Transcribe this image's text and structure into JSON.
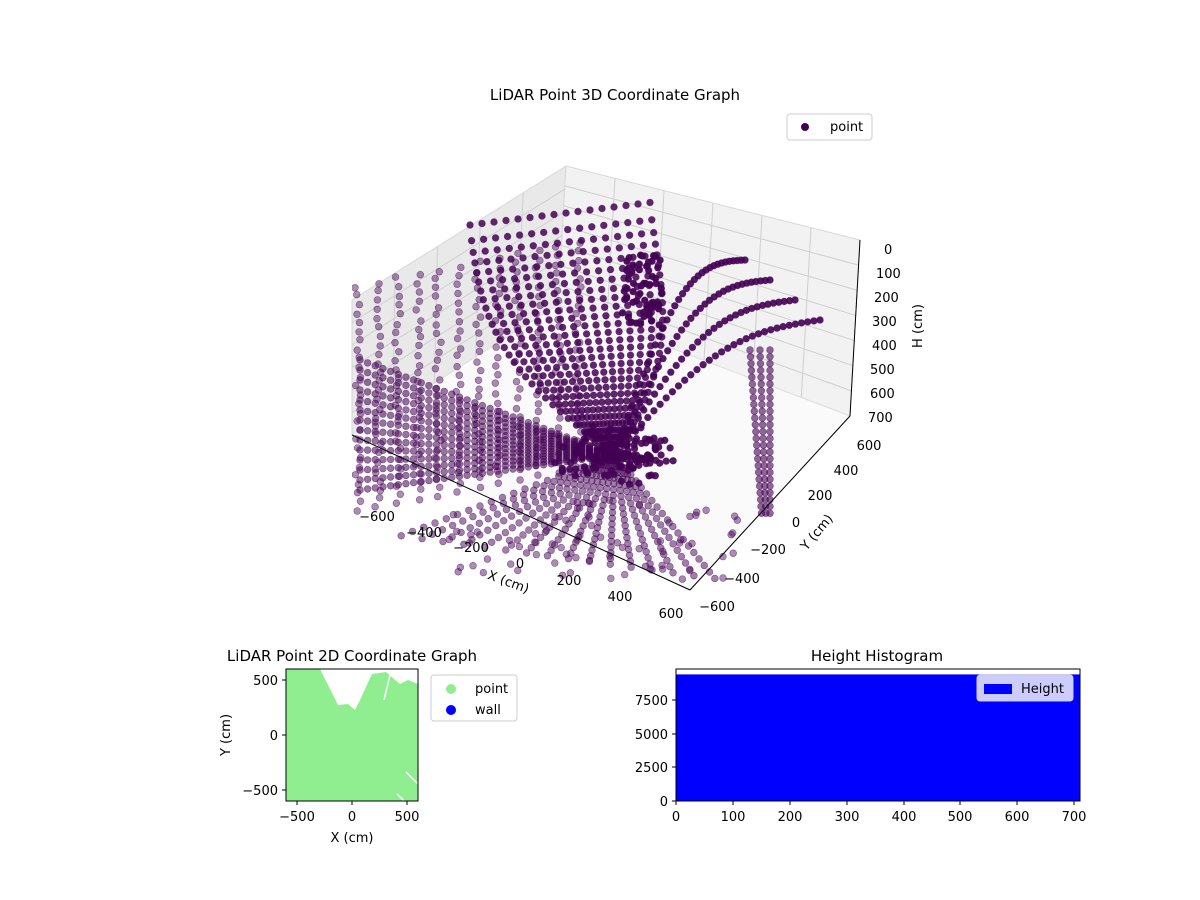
{
  "chart_data": [
    {
      "type": "scatter",
      "title": "LiDAR Point 3D Coordinate Graph",
      "xlabel": "X (cm)",
      "ylabel": "Y (cm)",
      "zlabel": "H (cm)",
      "xticks": [
        "−600",
        "−400",
        "−200",
        "0",
        "200",
        "400",
        "600"
      ],
      "yticks": [
        "−600",
        "−400",
        "−200",
        "0",
        "200",
        "400",
        "600"
      ],
      "zticks": [
        "0",
        "100",
        "200",
        "300",
        "400",
        "500",
        "600",
        "700"
      ],
      "xlim": [
        -600,
        600
      ],
      "ylim": [
        -600,
        600
      ],
      "zlim": [
        700,
        0
      ],
      "grid": true,
      "legend": "top-right",
      "series": [
        {
          "name": "point",
          "color": "#440154"
        }
      ]
    },
    {
      "type": "scatter",
      "title": "LiDAR Point 2D Coordinate Graph",
      "xlabel": "X (cm)",
      "ylabel": "Y (cm)",
      "xticks": [
        "−500",
        "0",
        "500"
      ],
      "yticks": [
        "−500",
        "0",
        "500"
      ],
      "xlim": [
        -600,
        600
      ],
      "ylim": [
        -600,
        600
      ],
      "legend": "outside-right",
      "series": [
        {
          "name": "point",
          "color": "#90ee90"
        },
        {
          "name": "wall",
          "color": "#0000ff"
        }
      ]
    },
    {
      "type": "bar",
      "title": "Height Histogram",
      "xticks": [
        "0",
        "100",
        "200",
        "300",
        "400",
        "500",
        "600",
        "700"
      ],
      "yticks": [
        "0",
        "2500",
        "5000",
        "7500"
      ],
      "xlim": [
        0,
        710
      ],
      "ylim": [
        0,
        9700
      ],
      "legend": "top-right",
      "series": [
        {
          "name": "Height",
          "color": "#0000ff",
          "x": [
            0,
            710
          ],
          "values": [
            9300,
            9300
          ]
        }
      ]
    }
  ]
}
